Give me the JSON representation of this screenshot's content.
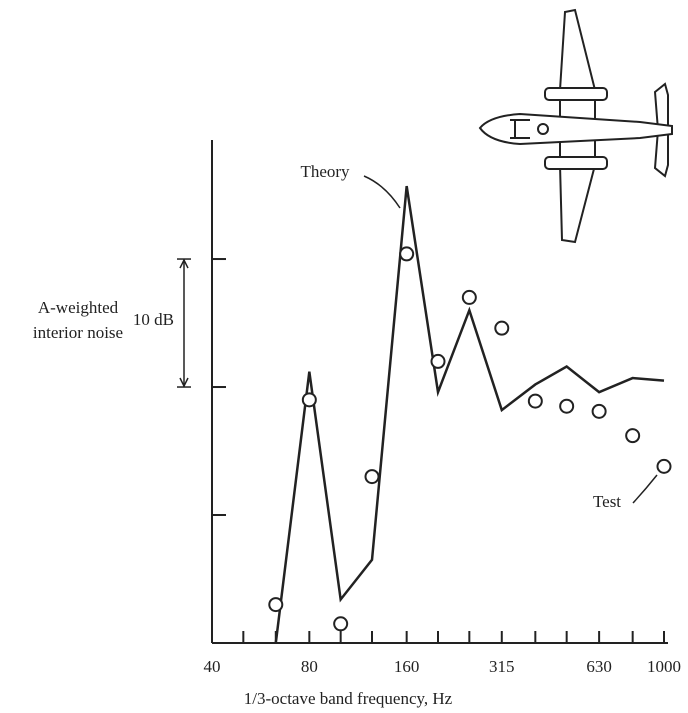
{
  "chart_data": {
    "type": "line",
    "x_label": "1/3-octave band frequency, Hz",
    "y_label": [
      "A-weighted",
      "interior noise"
    ],
    "scale_annotation": "10 dB",
    "x_log": true,
    "xlim": [
      40,
      1000
    ],
    "xticks": [
      40,
      80,
      160,
      315,
      630,
      1000
    ],
    "xminorticks": [
      50,
      63,
      100,
      125,
      200,
      250,
      400,
      500,
      800
    ],
    "ylim": [
      0,
      39.3
    ],
    "yticks": [
      10,
      20,
      30
    ],
    "x": [
      63,
      80,
      100,
      125,
      160,
      200,
      250,
      315,
      400,
      500,
      630,
      800,
      1000
    ],
    "series": [
      {
        "name": "Theory",
        "color": "#222222",
        "style": "line",
        "values": [
          0,
          21.2,
          3.4,
          6.5,
          35.7,
          19.6,
          26.0,
          18.2,
          20.2,
          21.6,
          19.6,
          20.7,
          20.5
        ]
      },
      {
        "name": "Test",
        "color": "#222222",
        "style": "marker",
        "values": [
          3.0,
          19.0,
          1.5,
          13.0,
          30.4,
          22.0,
          27.0,
          24.6,
          18.9,
          18.5,
          18.1,
          16.2,
          13.8
        ]
      }
    ]
  }
}
